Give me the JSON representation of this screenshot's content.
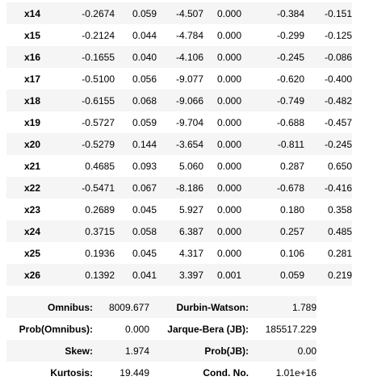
{
  "coefficients": {
    "rows": [
      {
        "name": "x14",
        "coef": "-0.2674",
        "std_err": "0.059",
        "t": "-4.507",
        "p": "0.000",
        "ci_low": "-0.384",
        "ci_high": "-0.151"
      },
      {
        "name": "x15",
        "coef": "-0.2124",
        "std_err": "0.044",
        "t": "-4.784",
        "p": "0.000",
        "ci_low": "-0.299",
        "ci_high": "-0.125"
      },
      {
        "name": "x16",
        "coef": "-0.1655",
        "std_err": "0.040",
        "t": "-4.106",
        "p": "0.000",
        "ci_low": "-0.245",
        "ci_high": "-0.086"
      },
      {
        "name": "x17",
        "coef": "-0.5100",
        "std_err": "0.056",
        "t": "-9.077",
        "p": "0.000",
        "ci_low": "-0.620",
        "ci_high": "-0.400"
      },
      {
        "name": "x18",
        "coef": "-0.6155",
        "std_err": "0.068",
        "t": "-9.066",
        "p": "0.000",
        "ci_low": "-0.749",
        "ci_high": "-0.482"
      },
      {
        "name": "x19",
        "coef": "-0.5727",
        "std_err": "0.059",
        "t": "-9.704",
        "p": "0.000",
        "ci_low": "-0.688",
        "ci_high": "-0.457"
      },
      {
        "name": "x20",
        "coef": "-0.5279",
        "std_err": "0.144",
        "t": "-3.654",
        "p": "0.000",
        "ci_low": "-0.811",
        "ci_high": "-0.245"
      },
      {
        "name": "x21",
        "coef": "0.4685",
        "std_err": "0.093",
        "t": "5.060",
        "p": "0.000",
        "ci_low": "0.287",
        "ci_high": "0.650"
      },
      {
        "name": "x22",
        "coef": "-0.5471",
        "std_err": "0.067",
        "t": "-8.186",
        "p": "0.000",
        "ci_low": "-0.678",
        "ci_high": "-0.416"
      },
      {
        "name": "x23",
        "coef": "0.2689",
        "std_err": "0.045",
        "t": "5.927",
        "p": "0.000",
        "ci_low": "0.180",
        "ci_high": "0.358"
      },
      {
        "name": "x24",
        "coef": "0.3715",
        "std_err": "0.058",
        "t": "6.387",
        "p": "0.000",
        "ci_low": "0.257",
        "ci_high": "0.485"
      },
      {
        "name": "x25",
        "coef": "0.1936",
        "std_err": "0.045",
        "t": "4.317",
        "p": "0.000",
        "ci_low": "0.106",
        "ci_high": "0.281"
      },
      {
        "name": "x26",
        "coef": "0.1392",
        "std_err": "0.041",
        "t": "3.397",
        "p": "0.001",
        "ci_low": "0.059",
        "ci_high": "0.219"
      }
    ]
  },
  "diagnostics": {
    "rows": [
      {
        "label_left": "Omnibus:",
        "value_left": "8009.677",
        "label_right": "Durbin-Watson:",
        "value_right": "1.789"
      },
      {
        "label_left": "Prob(Omnibus):",
        "value_left": "0.000",
        "label_right": "Jarque-Bera (JB):",
        "value_right": "185517.229"
      },
      {
        "label_left": "Skew:",
        "value_left": "1.974",
        "label_right": "Prob(JB):",
        "value_right": "0.00"
      },
      {
        "label_left": "Kurtosis:",
        "value_left": "19.449",
        "label_right": "Cond. No.",
        "value_right": "1.01e+16"
      }
    ]
  },
  "colors": {
    "stripe": "#f5f5f5",
    "background": "#ffffff",
    "text": "#000000"
  }
}
